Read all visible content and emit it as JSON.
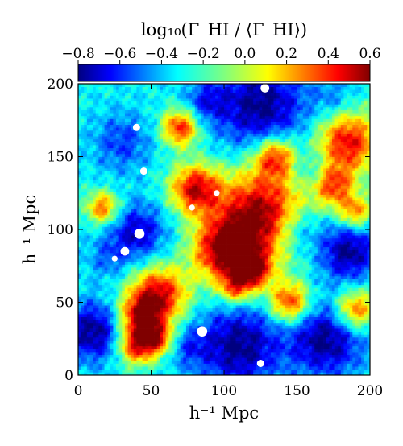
{
  "chart_data": {
    "type": "heatmap",
    "title": "",
    "xlabel": "h⁻¹ Mpc",
    "ylabel": "h⁻¹ Mpc",
    "xlim": [
      0,
      200
    ],
    "ylim": [
      0,
      200
    ],
    "x_ticks": [
      0,
      50,
      100,
      150,
      200
    ],
    "y_ticks": [
      0,
      50,
      100,
      150,
      200
    ],
    "x_tick_labels": [
      "0",
      "50",
      "100",
      "150",
      "200"
    ],
    "y_tick_labels": [
      "0",
      "50",
      "100",
      "150",
      "200"
    ],
    "colorbar": {
      "label": "log₁₀(Γ_HI / ⟨Γ_HI⟩)",
      "range": [
        -0.8,
        0.6
      ],
      "ticks": [
        -0.8,
        -0.6,
        -0.4,
        -0.2,
        0.0,
        0.2,
        0.4,
        0.6
      ],
      "tick_labels": [
        "−0.8",
        "−0.6",
        "−0.4",
        "−0.2",
        "0.0",
        "0.2",
        "0.4",
        "0.6"
      ],
      "colormap": "jet",
      "placement": "top"
    },
    "field_features": [
      {
        "kind": "peak",
        "x": 125,
        "y": 110,
        "level": 0.6,
        "radius": 22
      },
      {
        "kind": "peak",
        "x": 100,
        "y": 85,
        "level": 0.5,
        "radius": 15
      },
      {
        "kind": "peak",
        "x": 80,
        "y": 128,
        "level": 0.45,
        "radius": 12
      },
      {
        "kind": "peak",
        "x": 120,
        "y": 72,
        "level": 0.35,
        "radius": 9
      },
      {
        "kind": "peak",
        "x": 55,
        "y": 55,
        "level": 0.5,
        "radius": 14
      },
      {
        "kind": "peak",
        "x": 42,
        "y": 40,
        "level": 0.35,
        "radius": 10
      },
      {
        "kind": "peak",
        "x": 40,
        "y": 20,
        "level": 0.4,
        "radius": 9
      },
      {
        "kind": "peak",
        "x": 55,
        "y": 25,
        "level": 0.3,
        "radius": 8
      },
      {
        "kind": "peak",
        "x": 70,
        "y": 170,
        "level": 0.4,
        "radius": 9
      },
      {
        "kind": "peak",
        "x": 17,
        "y": 115,
        "level": 0.3,
        "radius": 8
      },
      {
        "kind": "peak",
        "x": 135,
        "y": 150,
        "level": 0.35,
        "radius": 10
      },
      {
        "kind": "peak",
        "x": 185,
        "y": 160,
        "level": 0.45,
        "radius": 15
      },
      {
        "kind": "peak",
        "x": 175,
        "y": 130,
        "level": 0.3,
        "radius": 10
      },
      {
        "kind": "peak",
        "x": 190,
        "y": 112,
        "level": 0.25,
        "radius": 8
      },
      {
        "kind": "peak",
        "x": 145,
        "y": 50,
        "level": 0.4,
        "radius": 10
      },
      {
        "kind": "peak",
        "x": 190,
        "y": 45,
        "level": 0.35,
        "radius": 10
      },
      {
        "kind": "peak",
        "x": 108,
        "y": 60,
        "level": 0.2,
        "radius": 8
      },
      {
        "kind": "void",
        "x": 125,
        "y": 185,
        "level": -0.8,
        "radius": 22
      },
      {
        "kind": "void",
        "x": 88,
        "y": 188,
        "level": -0.55,
        "radius": 10
      },
      {
        "kind": "void",
        "x": 30,
        "y": 160,
        "level": -0.55,
        "radius": 14
      },
      {
        "kind": "void",
        "x": 40,
        "y": 98,
        "level": -0.7,
        "radius": 14
      },
      {
        "kind": "void",
        "x": 20,
        "y": 80,
        "level": -0.45,
        "radius": 10
      },
      {
        "kind": "void",
        "x": 10,
        "y": 30,
        "level": -0.8,
        "radius": 14
      },
      {
        "kind": "void",
        "x": 110,
        "y": 20,
        "level": -0.8,
        "radius": 20
      },
      {
        "kind": "void",
        "x": 75,
        "y": 20,
        "level": -0.5,
        "radius": 10
      },
      {
        "kind": "void",
        "x": 170,
        "y": 25,
        "level": -0.8,
        "radius": 18
      },
      {
        "kind": "void",
        "x": 185,
        "y": 85,
        "level": -0.8,
        "radius": 14
      },
      {
        "kind": "void",
        "x": 150,
        "y": 100,
        "level": -0.6,
        "radius": 12
      },
      {
        "kind": "void",
        "x": 160,
        "y": 140,
        "level": -0.45,
        "radius": 10
      },
      {
        "kind": "void",
        "x": 175,
        "y": 190,
        "level": -0.45,
        "radius": 10
      }
    ],
    "masked_regions": [
      {
        "x": 42,
        "y": 97,
        "r": 3.5
      },
      {
        "x": 32,
        "y": 85,
        "r": 3
      },
      {
        "x": 25,
        "y": 80,
        "r": 2
      },
      {
        "x": 78,
        "y": 115,
        "r": 2
      },
      {
        "x": 85,
        "y": 30,
        "r": 3.5
      },
      {
        "x": 128,
        "y": 197,
        "r": 3
      },
      {
        "x": 40,
        "y": 170,
        "r": 2.5
      },
      {
        "x": 45,
        "y": 140,
        "r": 2.5
      },
      {
        "x": 95,
        "y": 125,
        "r": 2
      },
      {
        "x": 125,
        "y": 8,
        "r": 2.5
      }
    ]
  }
}
